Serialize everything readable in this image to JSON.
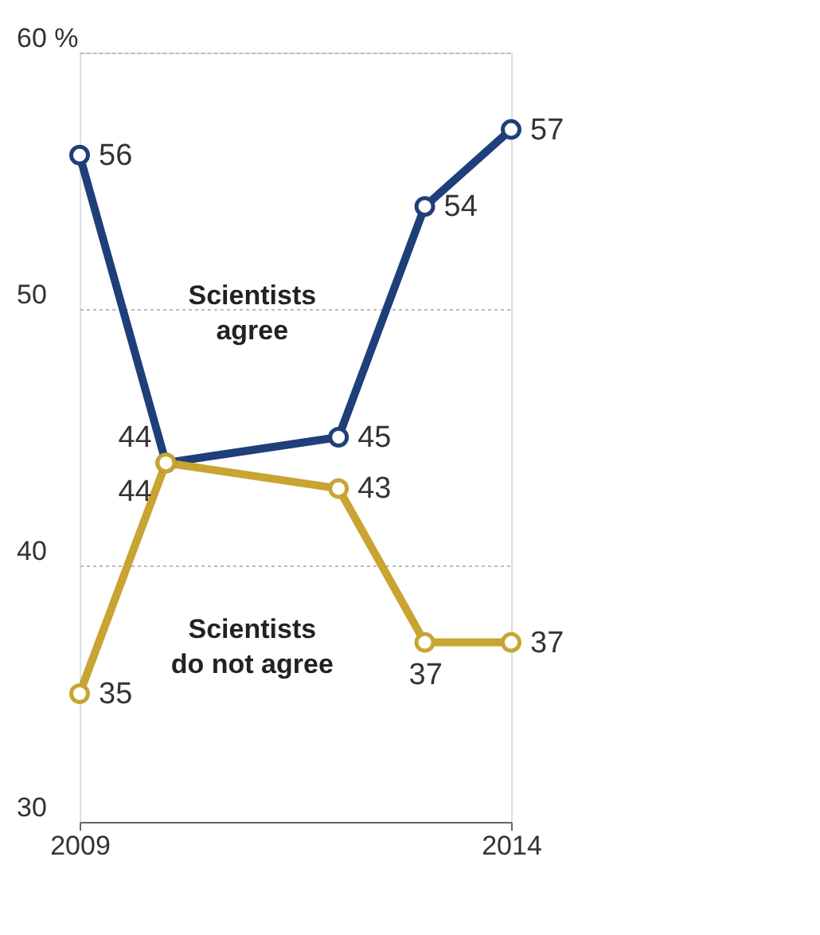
{
  "chart_data": {
    "type": "line",
    "x": [
      2009,
      2010,
      2012,
      2013,
      2014
    ],
    "series": [
      {
        "name": "Scientists agree",
        "color": "#1f3f7a",
        "values": [
          56,
          44,
          45,
          54,
          57
        ]
      },
      {
        "name": "Scientists do not agree",
        "color": "#c9a432",
        "values": [
          35,
          44,
          43,
          37,
          37
        ]
      }
    ],
    "xlim": [
      2009,
      2014
    ],
    "xticks": [
      2009,
      2014
    ],
    "ylim": [
      30,
      60
    ],
    "yticks": [
      30,
      40,
      50,
      {
        "value": 60,
        "label": "60 %"
      }
    ],
    "grid": "y",
    "marker": "circle",
    "line_style": "solid",
    "data_labels": true,
    "legend": false
  }
}
